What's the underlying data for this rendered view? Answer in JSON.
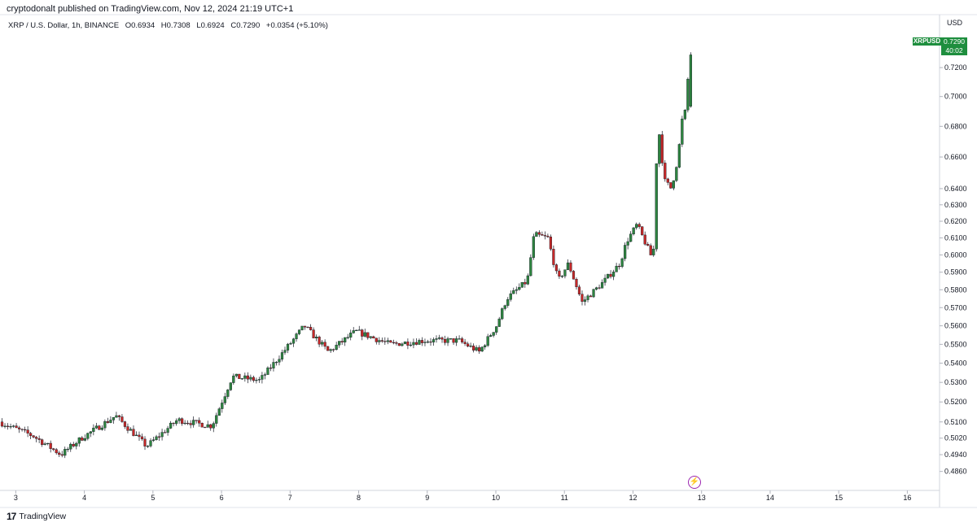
{
  "header": {
    "published": "cryptodonalt published on TradingView.com, Nov 12, 2024 21:19 UTC+1",
    "symbol_title": "XRP / U.S. Dollar, 1h, BINANCE",
    "open": "O0.6934",
    "high": "H0.7308",
    "low": "L0.6924",
    "close": "C0.7290",
    "change": "+0.0354 (+5.10%)"
  },
  "price_axis": {
    "currency": "USD"
  },
  "last_price_tag": {
    "symbol": "XRPUSD",
    "price": "0.7290",
    "countdown": "40:02"
  },
  "footer": {
    "brand": "TradingView"
  },
  "icons": {
    "bolt": "lightning-icon",
    "logo": "tradingview-logo-icon"
  },
  "colors": {
    "up": "#2e8540",
    "down": "#c62828",
    "tag": "#1e8e3e",
    "grid": "#e0e3eb"
  },
  "chart_data": {
    "type": "candlestick",
    "title": "XRP / U.S. Dollar, 1h, BINANCE",
    "scale": "logarithmic",
    "ylabel": "USD",
    "y_ticks": [
      0.486,
      0.494,
      0.502,
      0.51,
      0.52,
      0.53,
      0.54,
      0.55,
      0.56,
      0.57,
      0.58,
      0.59,
      0.6,
      0.61,
      0.62,
      0.63,
      0.64,
      0.66,
      0.68,
      0.7,
      0.72
    ],
    "y_tick_labels": [
      "0.4860",
      "0.4940",
      "0.5020",
      "0.5100",
      "0.5200",
      "0.5300",
      "0.5400",
      "0.5500",
      "0.5600",
      "0.5700",
      "0.5800",
      "0.5900",
      "0.6000",
      "0.6100",
      "0.6200",
      "0.6300",
      "0.6400",
      "0.6600",
      "0.6800",
      "0.7000",
      "0.7200"
    ],
    "x_tick_labels": [
      "3",
      "4",
      "5",
      "6",
      "7",
      "8",
      "9",
      "10",
      "11",
      "12",
      "13",
      "14",
      "15",
      "16"
    ],
    "x_tick_days": [
      3,
      4,
      5,
      6,
      7,
      8,
      9,
      10,
      11,
      12,
      13,
      14,
      15,
      16
    ],
    "x_range_days": [
      2.77,
      16.47
    ],
    "y_range": [
      0.479,
      0.745
    ],
    "grid": false,
    "legend": "none",
    "key_prices": [
      {
        "day": 2.8,
        "price": 0.51
      },
      {
        "day": 3.3,
        "price": 0.503
      },
      {
        "day": 3.7,
        "price": 0.494
      },
      {
        "day": 4.0,
        "price": 0.502
      },
      {
        "day": 4.5,
        "price": 0.513
      },
      {
        "day": 4.95,
        "price": 0.498
      },
      {
        "day": 5.4,
        "price": 0.511
      },
      {
        "day": 5.9,
        "price": 0.508
      },
      {
        "day": 6.2,
        "price": 0.533
      },
      {
        "day": 6.6,
        "price": 0.531
      },
      {
        "day": 7.1,
        "price": 0.553
      },
      {
        "day": 7.25,
        "price": 0.56
      },
      {
        "day": 7.6,
        "price": 0.546
      },
      {
        "day": 8.0,
        "price": 0.557
      },
      {
        "day": 8.5,
        "price": 0.55
      },
      {
        "day": 9.0,
        "price": 0.552
      },
      {
        "day": 9.5,
        "price": 0.552
      },
      {
        "day": 9.8,
        "price": 0.546
      },
      {
        "day": 10.05,
        "price": 0.56
      },
      {
        "day": 10.2,
        "price": 0.575
      },
      {
        "day": 10.5,
        "price": 0.585
      },
      {
        "day": 10.6,
        "price": 0.612
      },
      {
        "day": 10.8,
        "price": 0.61
      },
      {
        "day": 10.95,
        "price": 0.585
      },
      {
        "day": 11.1,
        "price": 0.595
      },
      {
        "day": 11.3,
        "price": 0.573
      },
      {
        "day": 11.6,
        "price": 0.584
      },
      {
        "day": 11.85,
        "price": 0.595
      },
      {
        "day": 11.95,
        "price": 0.608
      },
      {
        "day": 12.1,
        "price": 0.618
      },
      {
        "day": 12.3,
        "price": 0.6
      },
      {
        "day": 12.35,
        "price": 0.604
      },
      {
        "day": 12.4,
        "price": 0.685
      },
      {
        "day": 12.5,
        "price": 0.645
      },
      {
        "day": 12.6,
        "price": 0.64
      },
      {
        "day": 12.7,
        "price": 0.66
      },
      {
        "day": 12.75,
        "price": 0.683
      },
      {
        "day": 12.82,
        "price": 0.692
      },
      {
        "day": 12.86,
        "price": 0.729
      }
    ]
  }
}
